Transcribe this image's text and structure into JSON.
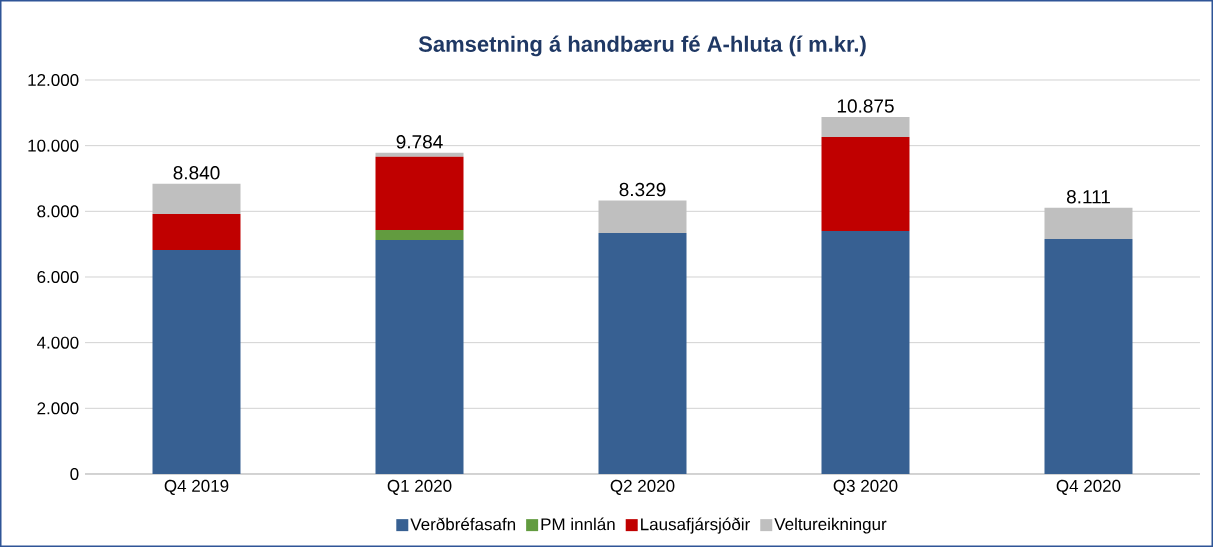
{
  "chart_data": {
    "type": "bar",
    "stacked": true,
    "title": "Samsetning á handbæru fé A-hluta (í m.kr.)",
    "categories": [
      "Q4 2019",
      "Q1 2020",
      "Q2 2020",
      "Q3 2020",
      "Q4 2020"
    ],
    "series": [
      {
        "name": "Verðbréfasafn",
        "color": "#376092",
        "values": [
          6820,
          7130,
          7340,
          7400,
          7160
        ]
      },
      {
        "name": "PM innlán",
        "color": "#629b3f",
        "values": [
          0,
          300,
          0,
          0,
          0
        ]
      },
      {
        "name": "Lausafjársjóðir",
        "color": "#c00000",
        "values": [
          1100,
          2230,
          0,
          2860,
          0
        ]
      },
      {
        "name": "Veltureikningur",
        "color": "#bfbfbf",
        "values": [
          920,
          124,
          990,
          615,
          950
        ]
      }
    ],
    "totals": [
      "8.840",
      "9.784",
      "8.329",
      "10.875",
      "8.111"
    ],
    "ylim": [
      0,
      12000
    ],
    "yticks": [
      {
        "value": 0,
        "label": "0"
      },
      {
        "value": 2000,
        "label": "2.000"
      },
      {
        "value": 4000,
        "label": "4.000"
      },
      {
        "value": 6000,
        "label": "6.000"
      },
      {
        "value": 8000,
        "label": "8.000"
      },
      {
        "value": 10000,
        "label": "10.000"
      },
      {
        "value": 12000,
        "label": "12.000"
      }
    ],
    "grid": "y",
    "legend": "bottom"
  }
}
